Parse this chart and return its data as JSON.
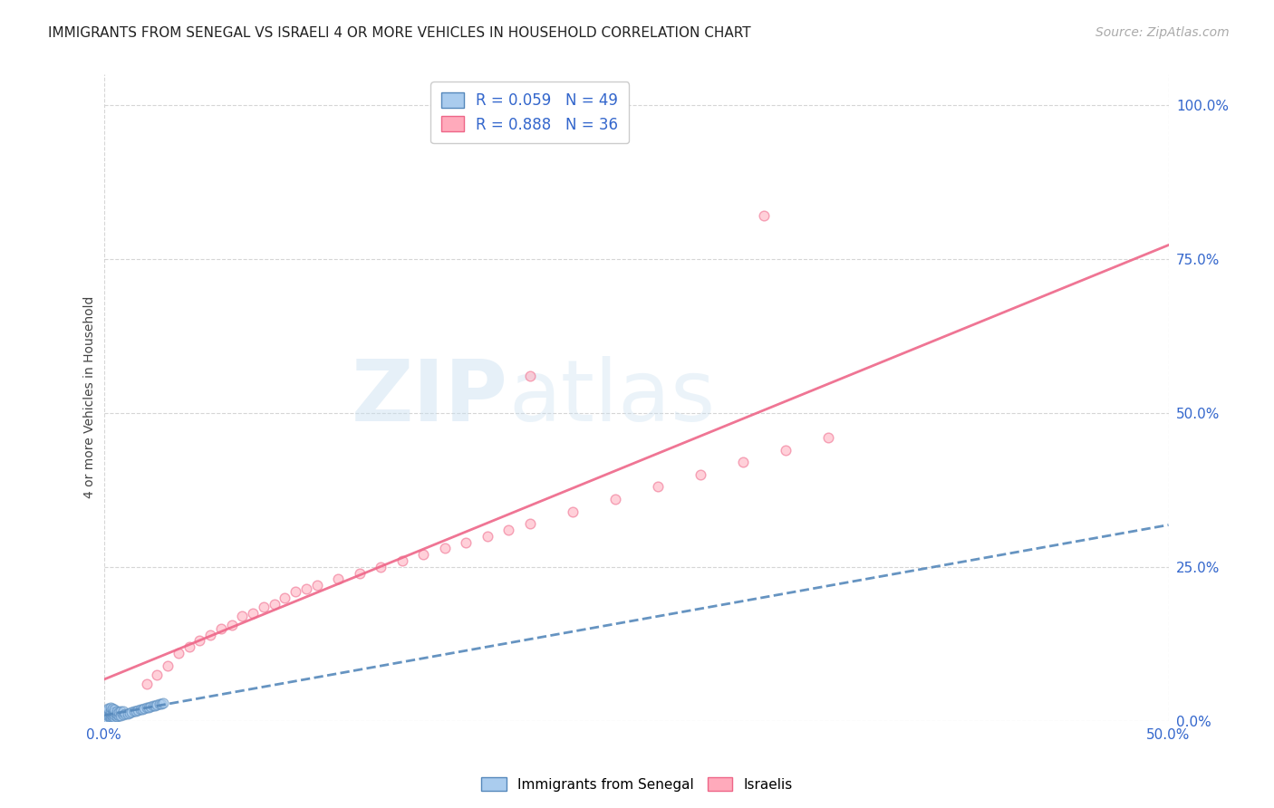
{
  "title": "IMMIGRANTS FROM SENEGAL VS ISRAELI 4 OR MORE VEHICLES IN HOUSEHOLD CORRELATION CHART",
  "source": "Source: ZipAtlas.com",
  "ylabel": "4 or more Vehicles in Household",
  "xmin": 0.0,
  "xmax": 0.5,
  "ymin": 0.0,
  "ymax": 1.05,
  "xtick_labels": [
    "0.0%",
    "50.0%"
  ],
  "ytick_labels": [
    "0.0%",
    "25.0%",
    "50.0%",
    "75.0%",
    "100.0%"
  ],
  "ytick_positions": [
    0.0,
    0.25,
    0.5,
    0.75,
    1.0
  ],
  "xtick_positions": [
    0.0,
    0.5
  ],
  "legend_label_1": "R = 0.059   N = 49",
  "legend_label_2": "R = 0.888   N = 36",
  "bottom_legend_1": "Immigrants from Senegal",
  "bottom_legend_2": "Israelis",
  "watermark_line1": "ZIP",
  "watermark_line2": "atlas",
  "background_color": "#ffffff",
  "grid_color": "#cccccc",
  "blue_scatter_x": [
    0.001,
    0.001,
    0.001,
    0.002,
    0.002,
    0.002,
    0.002,
    0.002,
    0.003,
    0.003,
    0.003,
    0.003,
    0.003,
    0.004,
    0.004,
    0.004,
    0.004,
    0.005,
    0.005,
    0.005,
    0.005,
    0.006,
    0.006,
    0.006,
    0.007,
    0.007,
    0.008,
    0.008,
    0.009,
    0.009,
    0.01,
    0.011,
    0.012,
    0.013,
    0.014,
    0.015,
    0.016,
    0.017,
    0.018,
    0.019,
    0.02,
    0.021,
    0.022,
    0.023,
    0.024,
    0.025,
    0.026,
    0.027,
    0.028
  ],
  "blue_scatter_y": [
    0.005,
    0.01,
    0.015,
    0.003,
    0.008,
    0.012,
    0.018,
    0.02,
    0.004,
    0.007,
    0.011,
    0.015,
    0.022,
    0.005,
    0.009,
    0.013,
    0.02,
    0.006,
    0.01,
    0.014,
    0.018,
    0.007,
    0.012,
    0.016,
    0.008,
    0.014,
    0.009,
    0.015,
    0.01,
    0.016,
    0.011,
    0.012,
    0.013,
    0.014,
    0.015,
    0.016,
    0.017,
    0.018,
    0.019,
    0.02,
    0.021,
    0.022,
    0.023,
    0.024,
    0.025,
    0.026,
    0.027,
    0.028,
    0.029
  ],
  "pink_scatter_x": [
    0.02,
    0.025,
    0.03,
    0.035,
    0.04,
    0.045,
    0.05,
    0.055,
    0.06,
    0.065,
    0.07,
    0.075,
    0.08,
    0.085,
    0.09,
    0.095,
    0.1,
    0.11,
    0.12,
    0.13,
    0.14,
    0.15,
    0.16,
    0.17,
    0.18,
    0.19,
    0.2,
    0.22,
    0.24,
    0.26,
    0.28,
    0.3,
    0.32,
    0.34,
    0.2,
    0.31
  ],
  "pink_scatter_y": [
    0.06,
    0.075,
    0.09,
    0.11,
    0.12,
    0.13,
    0.14,
    0.15,
    0.155,
    0.17,
    0.175,
    0.185,
    0.19,
    0.2,
    0.21,
    0.215,
    0.22,
    0.23,
    0.24,
    0.25,
    0.26,
    0.27,
    0.28,
    0.29,
    0.3,
    0.31,
    0.32,
    0.34,
    0.36,
    0.38,
    0.4,
    0.42,
    0.44,
    0.46,
    0.56,
    0.82
  ],
  "scatter_size": 60,
  "scatter_alpha": 0.55,
  "blue_color": "#5588bb",
  "pink_color": "#ee6688",
  "blue_fill": "#aaccee",
  "pink_fill": "#ffaabb",
  "axis_color": "#3366cc",
  "title_fontsize": 11,
  "label_fontsize": 10,
  "tick_fontsize": 11,
  "source_fontsize": 10
}
